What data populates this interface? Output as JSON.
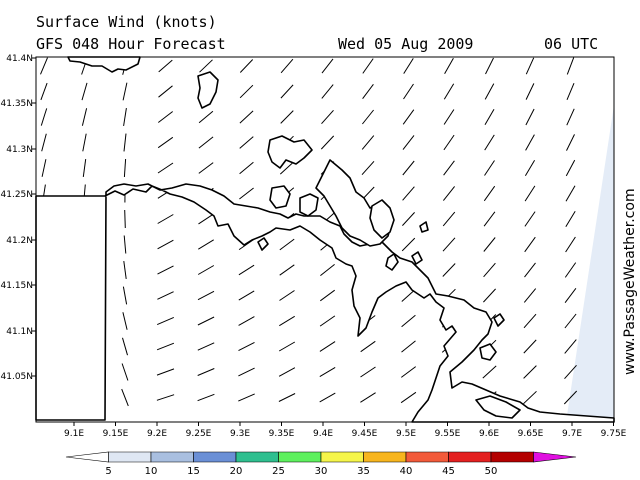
{
  "header": {
    "title": "Surface Wind (knots)",
    "subtitle": "GFS 048 Hour Forecast",
    "date": "Wed 05 Aug 2009",
    "time": "06 UTC"
  },
  "map": {
    "lat_labels": [
      "41.4N",
      "41.35N",
      "41.3N",
      "41.25N",
      "41.2N",
      "41.15N",
      "41.1N",
      "41.05N"
    ],
    "lon_labels": [
      "9.1E",
      "9.15E",
      "9.2E",
      "9.25E",
      "9.3E",
      "9.35E",
      "9.4E",
      "9.45E",
      "9.5E",
      "9.55E",
      "9.6E",
      "9.65E",
      "9.7E",
      "9.75E"
    ],
    "land_color": "#ffffff",
    "coastline_color": "#000000",
    "shade_color": "#e4ecf7"
  },
  "watermark": "www.PassageWeather.com",
  "colorbar": {
    "labels": [
      "5",
      "10",
      "15",
      "20",
      "25",
      "30",
      "35",
      "40",
      "45",
      "50"
    ],
    "colors": [
      "#ffffff",
      "#dfe7f3",
      "#a9bfe0",
      "#6a8fd6",
      "#2fbf8f",
      "#5ef05e",
      "#f5f54a",
      "#f7b51e",
      "#f25a3a",
      "#e42020",
      "#b40000",
      "#e010e0"
    ]
  }
}
